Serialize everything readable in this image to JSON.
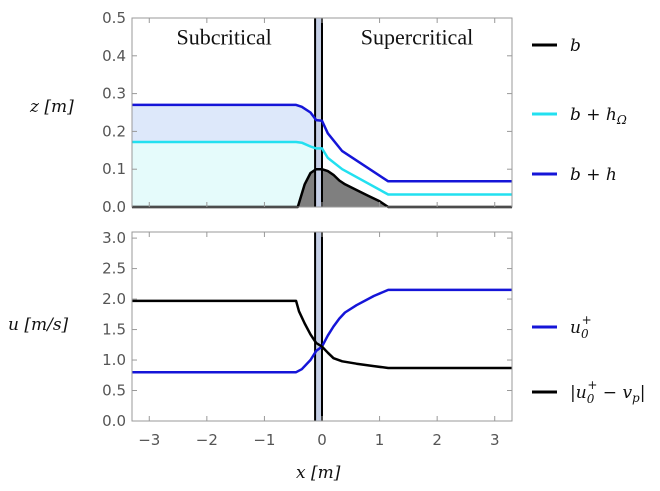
{
  "chart_data": [
    {
      "type": "area",
      "ylabel": "z [m]",
      "ylim": [
        0,
        0.5
      ],
      "yticks": [
        "0.0",
        "0.1",
        "0.2",
        "0.3",
        "0.4",
        "0.5"
      ],
      "xlim": [
        -3.3,
        3.3
      ],
      "annotations": [
        "Subcritical",
        "Supercritical"
      ],
      "grid": false,
      "legend": "right",
      "series": [
        {
          "name": "b",
          "color": "#000000",
          "x": [
            -3.3,
            -0.42,
            -0.38,
            -0.3,
            -0.2,
            -0.1,
            0.0,
            0.1,
            0.2,
            0.3,
            0.4,
            0.6,
            0.8,
            1.0,
            1.15,
            3.3
          ],
          "y": [
            0.0,
            0.0,
            0.02,
            0.06,
            0.09,
            0.1,
            0.1,
            0.095,
            0.085,
            0.07,
            0.06,
            0.045,
            0.03,
            0.015,
            0.0,
            0.0
          ]
        },
        {
          "name": "b + hΩ",
          "color": "#22e0f0",
          "x": [
            -3.3,
            -0.45,
            -0.35,
            -0.2,
            -0.1,
            0.0,
            0.1,
            0.35,
            1.15,
            3.3
          ],
          "y": [
            0.172,
            0.172,
            0.17,
            0.16,
            0.155,
            0.155,
            0.13,
            0.1,
            0.033,
            0.033
          ]
        },
        {
          "name": "b + h",
          "color": "#1515d8",
          "x": [
            -3.3,
            -0.45,
            -0.35,
            -0.2,
            -0.1,
            0.0,
            0.1,
            0.35,
            1.15,
            3.3
          ],
          "y": [
            0.27,
            0.27,
            0.265,
            0.25,
            0.23,
            0.228,
            0.195,
            0.148,
            0.068,
            0.068
          ]
        }
      ]
    },
    {
      "type": "line",
      "xlabel": "x [m]",
      "ylabel": "u [m/s]",
      "ylim": [
        0,
        3.1
      ],
      "yticks": [
        "0.0",
        "0.5",
        "1.0",
        "1.5",
        "2.0",
        "2.5",
        "3.0"
      ],
      "xlim": [
        -3.3,
        3.3
      ],
      "xticks": [
        "-3",
        "-2",
        "-1",
        "0",
        "1",
        "2",
        "3"
      ],
      "grid": false,
      "legend": "right",
      "series": [
        {
          "name": "u0+",
          "color": "#1515d8",
          "x": [
            -3.3,
            -0.45,
            -0.35,
            -0.2,
            -0.1,
            0.0,
            0.1,
            0.2,
            0.3,
            0.4,
            0.6,
            0.9,
            1.15,
            3.3
          ],
          "y": [
            0.8,
            0.8,
            0.85,
            1.0,
            1.15,
            1.22,
            1.4,
            1.55,
            1.68,
            1.78,
            1.9,
            2.05,
            2.15,
            2.15
          ]
        },
        {
          "name": "|u0+ − vp|",
          "color": "#000000",
          "x": [
            -3.3,
            -0.45,
            -0.4,
            -0.3,
            -0.2,
            -0.1,
            0.0,
            0.1,
            0.2,
            0.35,
            0.6,
            0.9,
            1.15,
            3.3
          ],
          "y": [
            1.97,
            1.97,
            1.8,
            1.6,
            1.42,
            1.28,
            1.22,
            1.12,
            1.03,
            0.98,
            0.94,
            0.9,
            0.87,
            0.87
          ]
        }
      ],
      "vertical_band": {
        "x": [
          -0.12,
          0.0
        ]
      }
    }
  ],
  "legend_labels": {
    "b": "b",
    "b_h_omega_main": "b + h",
    "b_h_omega_sub": "Ω",
    "b_h": "b + h",
    "u0_main": "u",
    "u0_sub": "0",
    "u0_sup": "+",
    "diff_open": "|u",
    "diff_sub": "0",
    "diff_sup": "+",
    "diff_rest": " − v",
    "diff_p": "p",
    "diff_close": "|"
  },
  "axis_labels": {
    "top_y": "z [m]",
    "bottom_y": "u [m/s]",
    "x": "x [m]"
  },
  "colors": {
    "band_fill": "#c5cfe6",
    "blue_fill": "#dde8fa",
    "cyan_fill": "#e5fbfb",
    "bed_fill": "#7f7f7f",
    "frame": "#999999"
  }
}
